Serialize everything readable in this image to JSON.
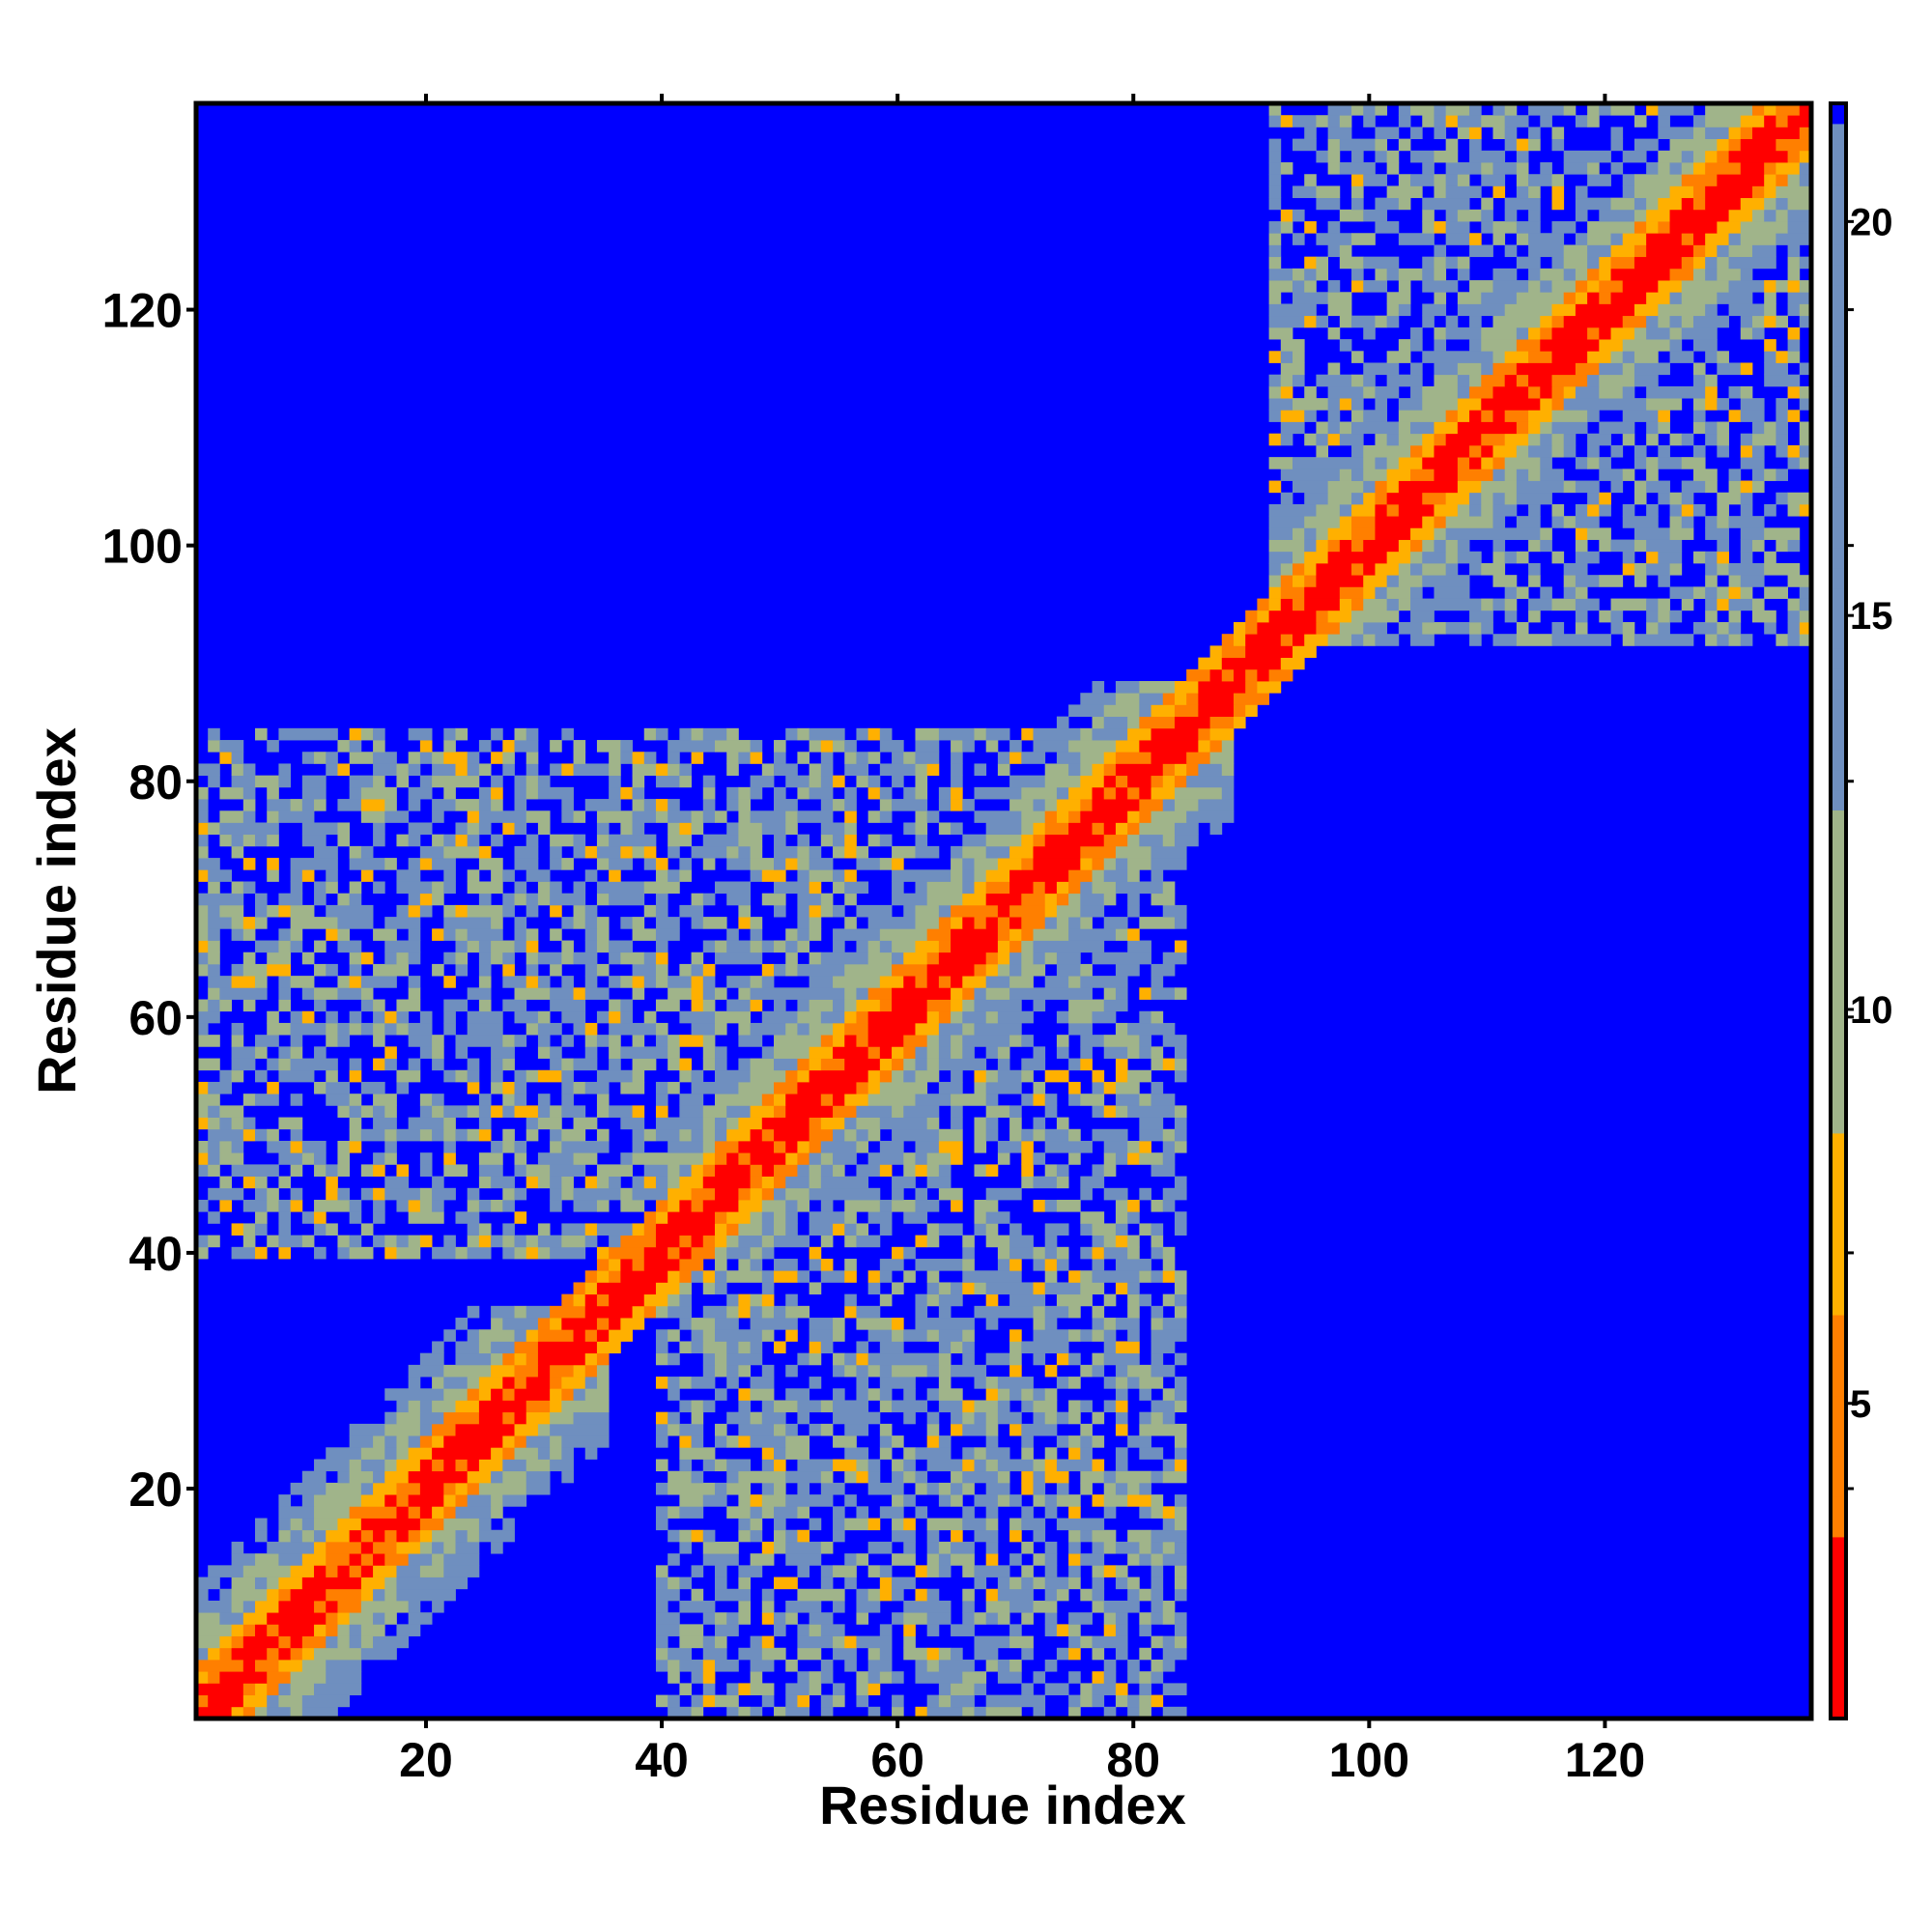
{
  "chart_data": {
    "type": "heatmap",
    "title": "",
    "xlabel": "Residue index",
    "ylabel": "Residue index",
    "n_residues": 137,
    "xlim": [
      1,
      137
    ],
    "ylim": [
      1,
      137
    ],
    "x_ticks": [
      20,
      40,
      60,
      80,
      100,
      120
    ],
    "y_ticks": [
      20,
      40,
      60,
      80,
      100,
      120
    ],
    "colorbar": {
      "ticks": [
        5,
        10,
        15,
        20
      ],
      "range": [
        1,
        21.5
      ],
      "cutoff_value": 21,
      "colors": {
        "near": "#ff0000",
        "mid": "#ff7f00",
        "far": "#ffb000",
        "green": "#a0b48a",
        "gray_blue": "#6f8fbf",
        "above_cutoff": "#0000ff"
      }
    },
    "domains": [
      {
        "x": [
          1,
          35
        ],
        "y": [
          1,
          35
        ]
      },
      {
        "x": [
          40,
          88
        ],
        "y": [
          40,
          88
        ]
      },
      {
        "x": [
          92,
          137
        ],
        "y": [
          92,
          137
        ]
      }
    ],
    "contact_clusters": [
      {
        "x": [
          1,
          40
        ],
        "y": [
          48,
          82
        ],
        "value": 14
      },
      {
        "x": [
          40,
          84
        ],
        "y": [
          1,
          40
        ],
        "value": 14
      },
      {
        "x": [
          40,
          84
        ],
        "y": [
          40,
          84
        ],
        "value": 14
      },
      {
        "x": [
          96,
          137
        ],
        "y": [
          92,
          137
        ],
        "value": 14
      }
    ],
    "diagonal_band": {
      "core_distance": 2.5,
      "band_width": 8,
      "outer_value": 15
    }
  }
}
